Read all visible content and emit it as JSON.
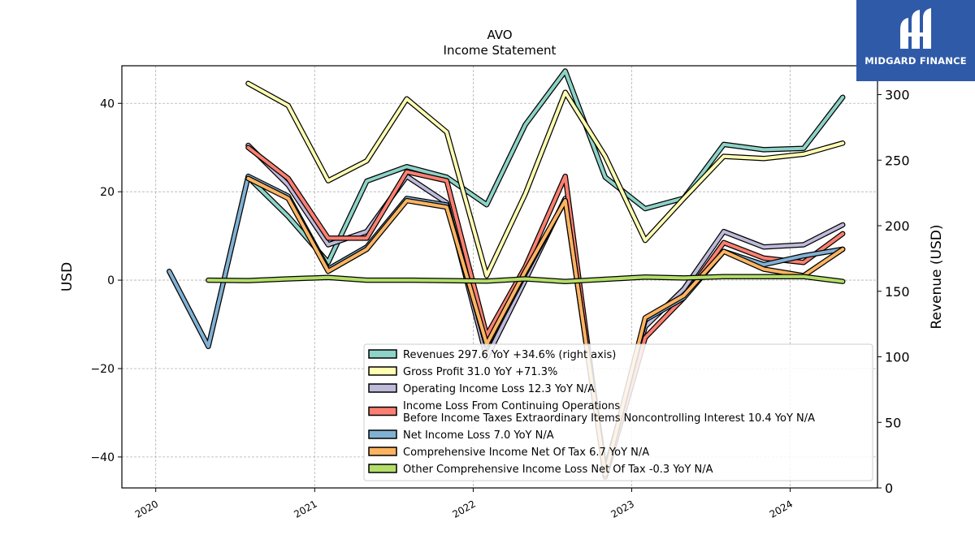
{
  "brand": {
    "name": "MIDGARD FINANCE"
  },
  "chart_data": {
    "type": "line",
    "title": "AVO",
    "subtitle": "Income Statement",
    "ylabel": "USD",
    "ylabel_right": "Revenue (USD)",
    "ylim": [
      -47,
      48.5
    ],
    "ylim_right": [
      0,
      322
    ],
    "yticks": [
      -40,
      -20,
      0,
      20,
      40
    ],
    "yticks_right": [
      0,
      50,
      100,
      150,
      200,
      250,
      300
    ],
    "xlim": [
      "2019-10-15",
      "2024-07-20"
    ],
    "xticks": [
      "2020-01-01",
      "2021-01-01",
      "2022-01-01",
      "2023-01-01",
      "2024-01-01"
    ],
    "xtick_labels": [
      "2020",
      "2021",
      "2022",
      "2023",
      "2024"
    ],
    "grid": true,
    "legend_position": "lower-right",
    "series": [
      {
        "name": "Revenues",
        "legend_label": "Revenues  297.6 YoY +34.6% (right axis)",
        "axis": "right",
        "color": "#8dd3c7",
        "x": [
          "2020-08-01",
          "2020-11-01",
          "2021-02-01",
          "2021-05-01",
          "2021-08-01",
          "2021-11-01",
          "2022-02-01",
          "2022-05-01",
          "2022-08-01",
          "2022-11-01",
          "2023-02-01",
          "2023-05-01",
          "2023-08-01",
          "2023-11-01",
          "2024-02-01",
          "2024-05-01"
        ],
        "values": [
          237,
          207,
          172,
          234,
          245,
          237,
          216,
          277,
          318,
          237,
          213,
          221,
          262,
          258,
          259,
          298
        ]
      },
      {
        "name": "Gross Profit",
        "legend_label": "Gross Profit  31.0 YoY +71.3%",
        "color": "#ffffb3",
        "x": [
          "2020-08-01",
          "2020-11-01",
          "2021-02-01",
          "2021-05-01",
          "2021-08-01",
          "2021-11-01",
          "2022-02-01",
          "2022-05-01",
          "2022-08-01",
          "2022-11-01",
          "2023-02-01",
          "2023-05-01",
          "2023-08-01",
          "2023-11-01",
          "2024-02-01",
          "2024-05-01"
        ],
        "values": [
          44.5,
          39.5,
          22.5,
          27,
          41,
          33.5,
          1,
          19.5,
          42.5,
          28,
          9,
          18.5,
          28,
          27.5,
          28.5,
          31
        ]
      },
      {
        "name": "Operating Income Loss",
        "legend_label": "Operating Income Loss  12.3 YoY N/A",
        "color": "#bebada",
        "x": [
          "2020-08-01",
          "2020-11-01",
          "2021-02-01",
          "2021-05-01",
          "2021-08-01",
          "2021-11-01",
          "2022-02-01",
          "2022-05-01",
          "2022-08-01",
          "2022-11-01",
          "2023-02-01",
          "2023-05-01",
          "2023-08-01",
          "2023-11-01",
          "2024-02-01",
          "2024-05-01"
        ],
        "values": [
          30.5,
          21.5,
          8,
          11,
          23.5,
          17.5,
          -17.5,
          0,
          18.5,
          -43,
          -10.5,
          -2,
          11,
          7.5,
          8,
          12.5
        ]
      },
      {
        "name": "Income Loss From Continuing Operations Before Income Taxes Extraordinary Items Noncontrolling Interest",
        "legend_label": [
          "Income Loss From Continuing Operations",
          "Before Income Taxes Extraordinary Items Noncontrolling Interest  10.4 YoY N/A"
        ],
        "color": "#fb8072",
        "x": [
          "2020-08-01",
          "2020-11-01",
          "2021-02-01",
          "2021-05-01",
          "2021-08-01",
          "2021-11-01",
          "2022-02-01",
          "2022-05-01",
          "2022-08-01",
          "2022-11-01",
          "2023-02-01",
          "2023-05-01",
          "2023-08-01",
          "2023-11-01",
          "2024-02-01",
          "2024-05-01"
        ],
        "values": [
          30,
          23,
          9.5,
          9.5,
          24.5,
          22.5,
          -12.5,
          3,
          23.5,
          -44.5,
          -13,
          -4,
          8.5,
          5,
          4,
          10.5
        ]
      },
      {
        "name": "Net Income Loss",
        "legend_label": "Net Income Loss  7.0 YoY N/A",
        "color": "#80b1d3",
        "x": [
          "2020-02-01",
          "2020-05-01",
          "2020-08-01",
          "2020-11-01",
          "2021-02-01",
          "2021-05-01",
          "2021-08-01",
          "2021-11-01",
          "2022-02-01",
          "2022-05-01",
          "2022-08-01",
          "2022-11-01",
          "2023-02-01",
          "2023-05-01",
          "2023-08-01",
          "2023-11-01",
          "2024-02-01",
          "2024-05-01"
        ],
        "values": [
          2,
          -15,
          23.5,
          19,
          2.5,
          7.5,
          18.5,
          17,
          -15,
          1.5,
          18,
          -44,
          -9,
          -4,
          6.5,
          3.5,
          5.5,
          7
        ]
      },
      {
        "name": "Comprehensive Income Net Of Tax",
        "legend_label": "Comprehensive Income Net Of Tax  6.7 YoY N/A",
        "color": "#fdb462",
        "x": [
          "2020-08-01",
          "2020-11-01",
          "2021-02-01",
          "2021-05-01",
          "2021-08-01",
          "2021-11-01",
          "2022-02-01",
          "2022-05-01",
          "2022-08-01",
          "2022-11-01",
          "2023-02-01",
          "2023-05-01",
          "2023-08-01",
          "2023-11-01",
          "2024-02-01",
          "2024-05-01"
        ],
        "values": [
          23,
          18.5,
          2,
          7,
          18,
          16.5,
          -14.5,
          2,
          18,
          -44,
          -8.5,
          -3.5,
          6.5,
          2.5,
          1,
          7
        ]
      },
      {
        "name": "Other Comprehensive Income Loss Net Of Tax",
        "legend_label": "Other Comprehensive Income Loss Net Of Tax  -0.3 YoY N/A",
        "color": "#b3de69",
        "x": [
          "2020-05-01",
          "2020-08-01",
          "2020-11-01",
          "2021-02-01",
          "2021-05-01",
          "2021-08-01",
          "2021-11-01",
          "2022-02-01",
          "2022-05-01",
          "2022-08-01",
          "2022-11-01",
          "2023-02-01",
          "2023-05-01",
          "2023-08-01",
          "2023-11-01",
          "2024-02-01",
          "2024-05-01"
        ],
        "values": [
          0,
          -0.1,
          0.3,
          0.6,
          0,
          0,
          -0.1,
          -0.2,
          0.3,
          -0.3,
          0.2,
          0.7,
          0.5,
          0.8,
          0.8,
          0.8,
          -0.3
        ]
      }
    ]
  }
}
